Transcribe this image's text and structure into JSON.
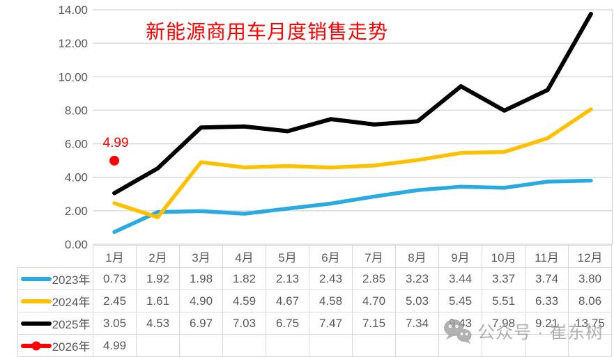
{
  "title": {
    "text": "新能源商用车月度销售走势",
    "color": "#FF0000"
  },
  "chart_data": {
    "type": "line",
    "categories": [
      "1月",
      "2月",
      "3月",
      "4月",
      "5月",
      "6月",
      "7月",
      "8月",
      "9月",
      "10月",
      "11月",
      "12月"
    ],
    "series": [
      {
        "name": "2023年",
        "color": "#29ABE2",
        "line_width": 5.5,
        "marker": "none",
        "values": [
          0.73,
          1.92,
          1.98,
          1.82,
          2.13,
          2.43,
          2.85,
          3.23,
          3.44,
          3.37,
          3.74,
          3.8
        ]
      },
      {
        "name": "2024年",
        "color": "#FFC000",
        "line_width": 5.5,
        "marker": "none",
        "values": [
          2.45,
          1.61,
          4.9,
          4.59,
          4.67,
          4.58,
          4.7,
          5.03,
          5.45,
          5.51,
          6.33,
          8.06
        ]
      },
      {
        "name": "2025年",
        "color": "#000000",
        "line_width": 6,
        "marker": "none",
        "values": [
          3.05,
          4.53,
          6.97,
          7.03,
          6.75,
          7.47,
          7.15,
          7.34,
          9.43,
          7.98,
          9.21,
          13.75
        ]
      },
      {
        "name": "2026年",
        "color": "#FF0000",
        "line_width": 5.5,
        "marker": "circle",
        "values": [
          4.99,
          null,
          null,
          null,
          null,
          null,
          null,
          null,
          null,
          null,
          null,
          null
        ]
      }
    ],
    "ylim": [
      0,
      14
    ],
    "ytick_labels": [
      "0.00",
      "2.00",
      "4.00",
      "6.00",
      "8.00",
      "10.00",
      "12.00",
      "14.00"
    ],
    "grid": true,
    "legend_position": "table-left",
    "annotations": [
      {
        "text": "4.99",
        "color": "#FF0000",
        "month_index": 0,
        "value": 4.99
      }
    ]
  },
  "table": {
    "header": [
      "1月",
      "2月",
      "3月",
      "4月",
      "5月",
      "6月",
      "7月",
      "8月",
      "9月",
      "10月",
      "11月",
      "12月"
    ],
    "rows": [
      {
        "label": "2023年",
        "values": [
          "0.73",
          "1.92",
          "1.98",
          "1.82",
          "2.13",
          "2.43",
          "2.85",
          "3.23",
          "3.44",
          "3.37",
          "3.74",
          "3.80"
        ]
      },
      {
        "label": "2024年",
        "values": [
          "2.45",
          "1.61",
          "4.90",
          "4.59",
          "4.67",
          "4.58",
          "4.70",
          "5.03",
          "5.45",
          "5.51",
          "6.33",
          "8.06"
        ]
      },
      {
        "label": "2025年",
        "values": [
          "3.05",
          "4.53",
          "6.97",
          "7.03",
          "6.75",
          "7.47",
          "7.15",
          "7.34",
          "9.43",
          "7.98",
          "9.21",
          "13.75"
        ]
      },
      {
        "label": "2026年",
        "values": [
          "4.99",
          "",
          "",
          "",
          "",
          "",
          "",
          "",
          "",
          "",
          "",
          ""
        ]
      }
    ]
  },
  "watermark": {
    "icon": "wechat-icon",
    "text": "公众号 · 崔东树",
    "color": "#9E9E9E"
  },
  "colors": {
    "grid": "#D9D9D9",
    "axis_text": "#595959",
    "table_border": "#D9D9D9",
    "table_text": "#595959",
    "background": "#FFFFFF"
  }
}
